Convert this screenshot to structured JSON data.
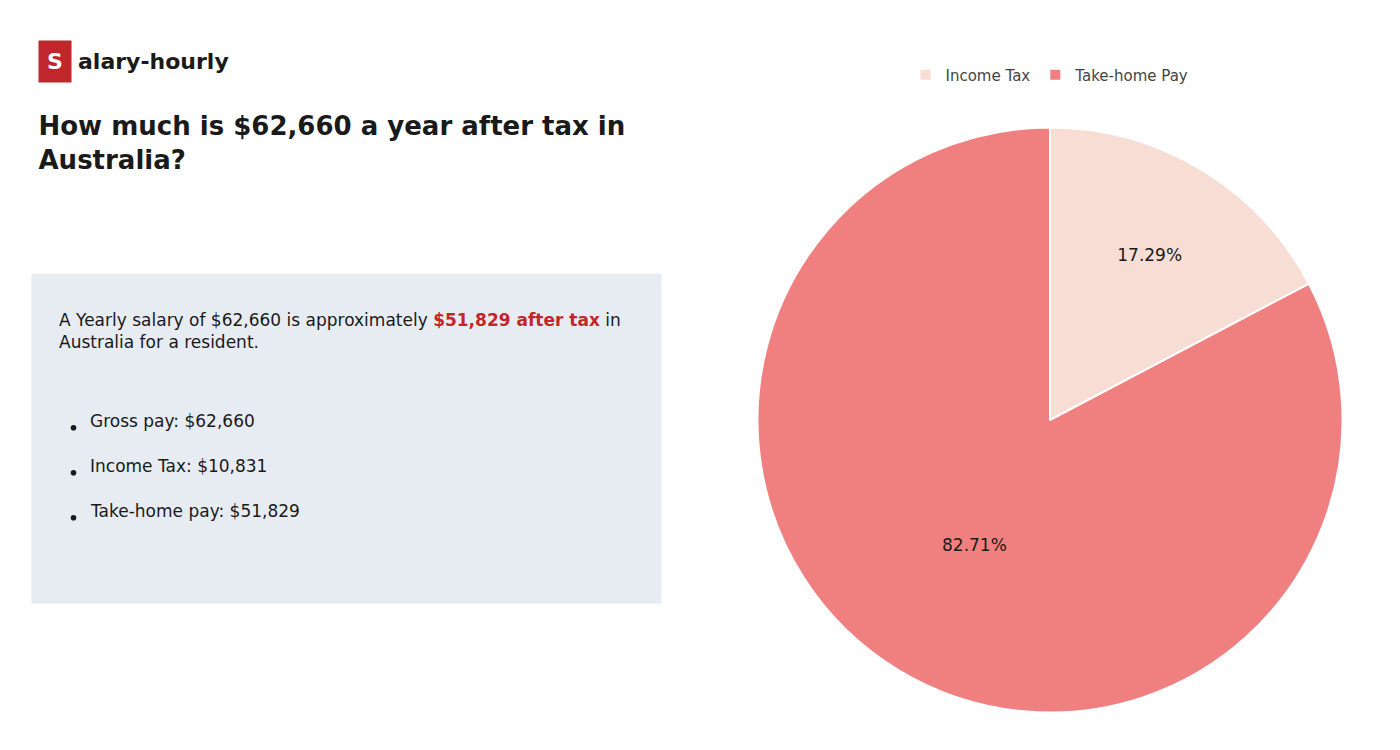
{
  "chart_data": {
    "type": "pie",
    "title": "How much is $62,660 a year after tax in\nAustralia?",
    "categories": [
      "Income Tax",
      "Take-home Pay"
    ],
    "values": [
      17.29,
      82.71
    ],
    "value_labels": [
      "17.29%",
      "82.71%"
    ],
    "colors": [
      "#f7ddd4",
      "#f08080"
    ],
    "data_labels": true,
    "legend": "top",
    "annotations": [
      {
        "text": "S",
        "color": "#c0272d"
      },
      "alary-hourly",
      "A Yearly salary of $62,660 is approximately",
      {
        "text": "$51,829 after tax",
        "color": "#c0272d"
      },
      "in",
      "Australia for a resident.",
      "Gross pay: $62,660",
      "Income Tax: $10,831",
      "Take-home pay: $51,829"
    ]
  }
}
